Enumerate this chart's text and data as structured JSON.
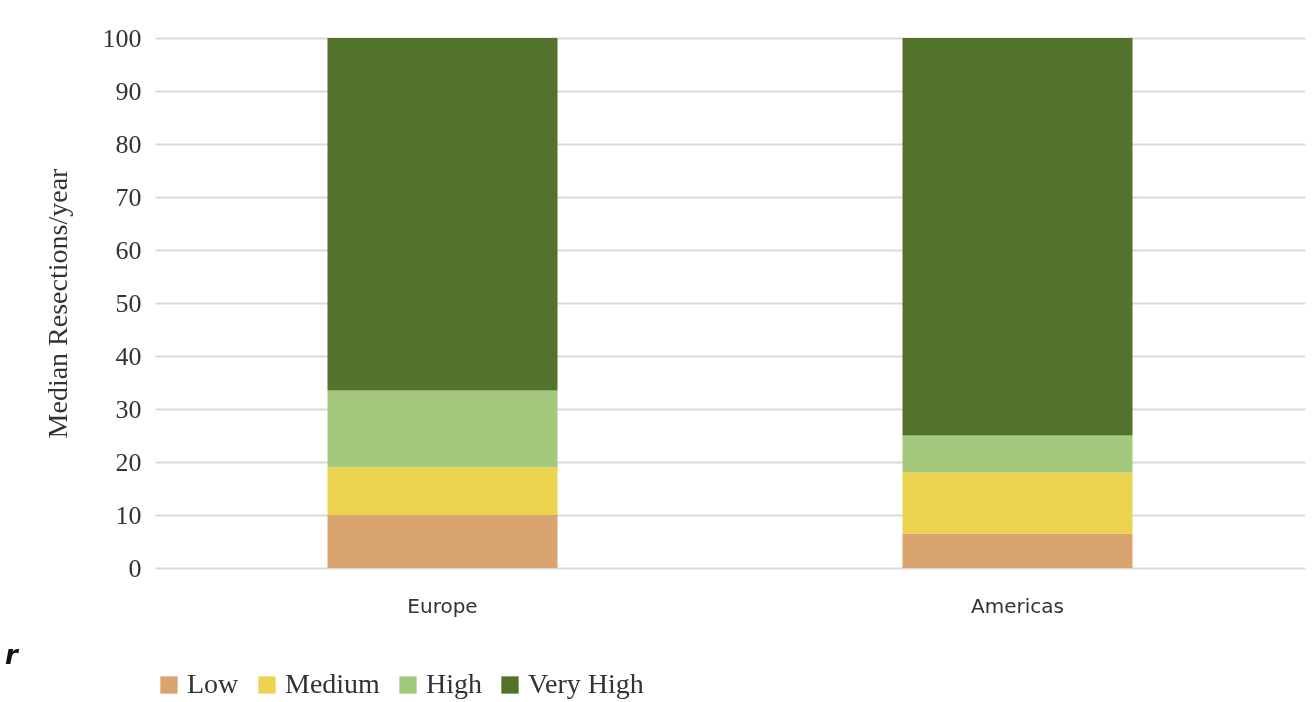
{
  "chart_data": {
    "type": "bar",
    "stacked": true,
    "ylabel": "Median Resections/year",
    "categories": [
      "Europe",
      "Americas"
    ],
    "series": [
      {
        "name": "Low",
        "color": "#d9a46e",
        "values": [
          10,
          6.5
        ]
      },
      {
        "name": "Medium",
        "color": "#ecd450",
        "values": [
          9,
          11.5
        ]
      },
      {
        "name": "High",
        "color": "#a4c97c",
        "values": [
          14.5,
          7
        ]
      },
      {
        "name": "Very High",
        "color": "#53722b",
        "values": [
          66.5,
          75
        ]
      }
    ],
    "ylim": [
      0,
      100
    ],
    "yticks": [
      0,
      10,
      20,
      30,
      40,
      50,
      60,
      70,
      80,
      90,
      100
    ],
    "grid": "y",
    "legend": "bottom",
    "annotations": [
      "r"
    ]
  }
}
